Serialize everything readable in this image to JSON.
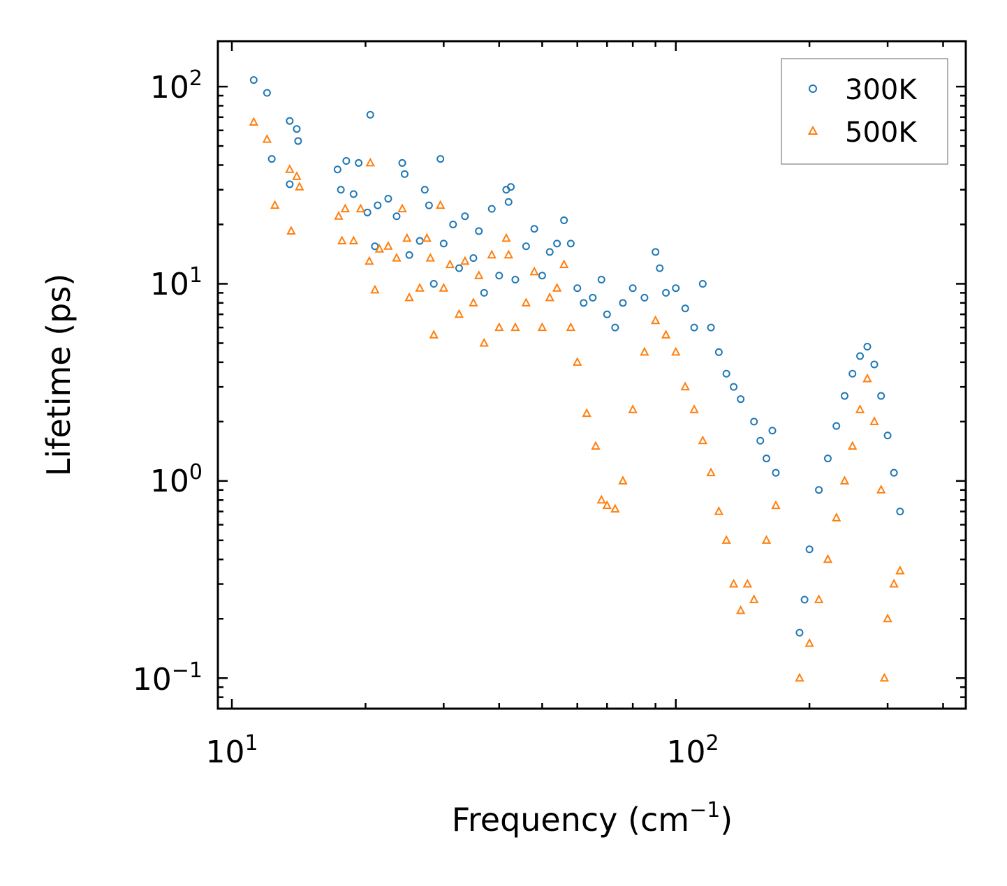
{
  "chart_data": {
    "type": "scatter",
    "title": "",
    "xlabel_main": "Frequency (cm",
    "xlabel_exp": "−1",
    "xlabel_close": ")",
    "ylabel": "Lifetime (ps)",
    "xscale": "log",
    "yscale": "log",
    "xlim": [
      9.3,
      450
    ],
    "ylim": [
      0.07,
      170
    ],
    "x_ticks": [
      {
        "value": 10,
        "base": "10",
        "exp": "1"
      },
      {
        "value": 100,
        "base": "10",
        "exp": "2"
      }
    ],
    "y_ticks": [
      {
        "value": 100,
        "base": "10",
        "exp": "2"
      },
      {
        "value": 10,
        "base": "10",
        "exp": "1"
      },
      {
        "value": 1,
        "base": "10",
        "exp": "0"
      },
      {
        "value": 0.1,
        "base": "10",
        "exp": "−1"
      }
    ],
    "legend_position": "top-right",
    "series": [
      {
        "name": "300K",
        "marker": "circle",
        "color": "#1f77b4",
        "points": [
          [
            11.2,
            108
          ],
          [
            12.0,
            93
          ],
          [
            12.3,
            43
          ],
          [
            13.5,
            67
          ],
          [
            13.5,
            32
          ],
          [
            14.0,
            61
          ],
          [
            14.1,
            53
          ],
          [
            17.3,
            38
          ],
          [
            17.6,
            30
          ],
          [
            18.1,
            42
          ],
          [
            18.8,
            28.5
          ],
          [
            19.3,
            41
          ],
          [
            20.5,
            72
          ],
          [
            20.2,
            23
          ],
          [
            21.0,
            15.5
          ],
          [
            21.3,
            25
          ],
          [
            22.5,
            27
          ],
          [
            23.5,
            22
          ],
          [
            24.2,
            41
          ],
          [
            24.5,
            36
          ],
          [
            25.1,
            14
          ],
          [
            26.5,
            16.5
          ],
          [
            27.2,
            30
          ],
          [
            27.8,
            25
          ],
          [
            28.5,
            10
          ],
          [
            29.5,
            43
          ],
          [
            30.0,
            16
          ],
          [
            31.5,
            20
          ],
          [
            32.5,
            12
          ],
          [
            33.5,
            22
          ],
          [
            35.0,
            13.5
          ],
          [
            36.0,
            18.5
          ],
          [
            37.0,
            9
          ],
          [
            38.5,
            24
          ],
          [
            40.0,
            11
          ],
          [
            41.5,
            30
          ],
          [
            42.0,
            26
          ],
          [
            42.5,
            31
          ],
          [
            43.5,
            10.5
          ],
          [
            46.0,
            15.5
          ],
          [
            48.0,
            19
          ],
          [
            50.0,
            11
          ],
          [
            52.0,
            14.5
          ],
          [
            54.0,
            16
          ],
          [
            56.0,
            21
          ],
          [
            58.0,
            16
          ],
          [
            60.0,
            9.5
          ],
          [
            62.0,
            8
          ],
          [
            65.0,
            8.5
          ],
          [
            68.0,
            10.5
          ],
          [
            70.0,
            7
          ],
          [
            73.0,
            6
          ],
          [
            76.0,
            8
          ],
          [
            80.0,
            9.5
          ],
          [
            85.0,
            8.5
          ],
          [
            90.0,
            14.5
          ],
          [
            92.0,
            12
          ],
          [
            95.0,
            9
          ],
          [
            100.0,
            9.5
          ],
          [
            105.0,
            7.5
          ],
          [
            110.0,
            6
          ],
          [
            115.0,
            10
          ],
          [
            120.0,
            6
          ],
          [
            125.0,
            4.5
          ],
          [
            130.0,
            3.5
          ],
          [
            135.0,
            3
          ],
          [
            140.0,
            2.6
          ],
          [
            150.0,
            2
          ],
          [
            155.0,
            1.6
          ],
          [
            160.0,
            1.3
          ],
          [
            165.0,
            1.8
          ],
          [
            168.0,
            1.1
          ],
          [
            190.0,
            0.17
          ],
          [
            195.0,
            0.25
          ],
          [
            200.0,
            0.45
          ],
          [
            210.0,
            0.9
          ],
          [
            220.0,
            1.3
          ],
          [
            230.0,
            1.9
          ],
          [
            240.0,
            2.7
          ],
          [
            250.0,
            3.5
          ],
          [
            260.0,
            4.3
          ],
          [
            270.0,
            4.8
          ],
          [
            280.0,
            3.9
          ],
          [
            290.0,
            2.7
          ],
          [
            300.0,
            1.7
          ],
          [
            310.0,
            1.1
          ],
          [
            320.0,
            0.7
          ]
        ]
      },
      {
        "name": "500K",
        "marker": "triangle",
        "color": "#ff7f0e",
        "points": [
          [
            11.2,
            66
          ],
          [
            12.0,
            54
          ],
          [
            12.5,
            25
          ],
          [
            13.5,
            38
          ],
          [
            13.6,
            18.5
          ],
          [
            14.0,
            35
          ],
          [
            14.2,
            31
          ],
          [
            17.4,
            22
          ],
          [
            17.7,
            16.5
          ],
          [
            18.0,
            24
          ],
          [
            18.8,
            16.5
          ],
          [
            19.5,
            24
          ],
          [
            20.5,
            41
          ],
          [
            20.4,
            13
          ],
          [
            21.0,
            9.3
          ],
          [
            21.5,
            15
          ],
          [
            22.5,
            15.5
          ],
          [
            23.5,
            13.5
          ],
          [
            24.2,
            24
          ],
          [
            24.8,
            17
          ],
          [
            25.1,
            8.5
          ],
          [
            26.5,
            9.5
          ],
          [
            27.5,
            17
          ],
          [
            28.0,
            13.5
          ],
          [
            28.5,
            5.5
          ],
          [
            29.5,
            25
          ],
          [
            30.0,
            9.5
          ],
          [
            31.0,
            12.5
          ],
          [
            32.5,
            7
          ],
          [
            33.5,
            13
          ],
          [
            35.0,
            8
          ],
          [
            36.0,
            11
          ],
          [
            37.0,
            5
          ],
          [
            38.5,
            14
          ],
          [
            40.0,
            6
          ],
          [
            41.5,
            17
          ],
          [
            42.0,
            14
          ],
          [
            43.5,
            6
          ],
          [
            46.0,
            8
          ],
          [
            48.0,
            11.5
          ],
          [
            50.0,
            6
          ],
          [
            52.0,
            8.5
          ],
          [
            54.0,
            9.5
          ],
          [
            56.0,
            12.5
          ],
          [
            58.0,
            6
          ],
          [
            60.0,
            4
          ],
          [
            63.0,
            2.2
          ],
          [
            66.0,
            1.5
          ],
          [
            68.0,
            0.8
          ],
          [
            70.0,
            0.75
          ],
          [
            73.0,
            0.72
          ],
          [
            76.0,
            1.0
          ],
          [
            80.0,
            2.3
          ],
          [
            85.0,
            4.5
          ],
          [
            90.0,
            6.5
          ],
          [
            95.0,
            5.5
          ],
          [
            100.0,
            4.5
          ],
          [
            105.0,
            3
          ],
          [
            110.0,
            2.3
          ],
          [
            115.0,
            1.6
          ],
          [
            120.0,
            1.1
          ],
          [
            125.0,
            0.7
          ],
          [
            130.0,
            0.5
          ],
          [
            135.0,
            0.3
          ],
          [
            140.0,
            0.22
          ],
          [
            145.0,
            0.3
          ],
          [
            150.0,
            0.25
          ],
          [
            160.0,
            0.5
          ],
          [
            168.0,
            0.75
          ],
          [
            190.0,
            0.1
          ],
          [
            200.0,
            0.15
          ],
          [
            210.0,
            0.25
          ],
          [
            220.0,
            0.4
          ],
          [
            230.0,
            0.65
          ],
          [
            240.0,
            1.0
          ],
          [
            250.0,
            1.5
          ],
          [
            260.0,
            2.3
          ],
          [
            270.0,
            3.3
          ],
          [
            280.0,
            2.0
          ],
          [
            290.0,
            0.9
          ],
          [
            295.0,
            0.1
          ],
          [
            300.0,
            0.2
          ],
          [
            310.0,
            0.3
          ],
          [
            320.0,
            0.35
          ]
        ]
      }
    ]
  }
}
